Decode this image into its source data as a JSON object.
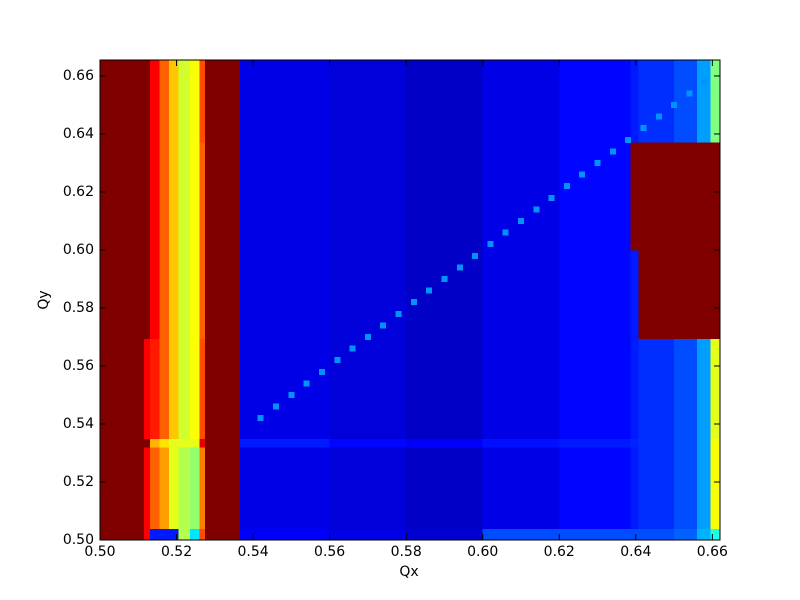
{
  "chart_data": {
    "type": "heatmap",
    "colormap": "jet",
    "x_label": "Qx",
    "y_label": "Qy",
    "xlim": [
      0.5,
      0.662
    ],
    "ylim": [
      0.5,
      0.6655
    ],
    "xticks": [
      {
        "value": 0.5,
        "label": "0.50"
      },
      {
        "value": 0.52,
        "label": "0.52"
      },
      {
        "value": 0.54,
        "label": "0.54"
      },
      {
        "value": 0.56,
        "label": "0.56"
      },
      {
        "value": 0.58,
        "label": "0.58"
      },
      {
        "value": 0.6,
        "label": "0.60"
      },
      {
        "value": 0.62,
        "label": "0.62"
      },
      {
        "value": 0.64,
        "label": "0.64"
      },
      {
        "value": 0.66,
        "label": "0.66"
      }
    ],
    "yticks": [
      {
        "value": 0.5,
        "label": "0.50"
      },
      {
        "value": 0.52,
        "label": "0.52"
      },
      {
        "value": 0.54,
        "label": "0.54"
      },
      {
        "value": 0.56,
        "label": "0.56"
      },
      {
        "value": 0.58,
        "label": "0.58"
      },
      {
        "value": 0.6,
        "label": "0.60"
      },
      {
        "value": 0.62,
        "label": "0.62"
      },
      {
        "value": 0.64,
        "label": "0.64"
      },
      {
        "value": 0.66,
        "label": "0.66"
      }
    ],
    "x_edges": [
      0.5,
      0.5115,
      0.513,
      0.5155,
      0.518,
      0.5205,
      0.5235,
      0.526,
      0.5275,
      0.5366,
      0.56,
      0.58,
      0.6,
      0.62,
      0.6386,
      0.6407,
      0.65,
      0.656,
      0.6595,
      0.662
    ],
    "y_edges": [
      0.5,
      0.504,
      0.532,
      0.535,
      0.5695,
      0.6,
      0.6372,
      0.6655
    ],
    "z": [
      [
        1,
        0.88,
        0.15,
        0.15,
        0.15,
        0.55,
        0.35,
        0.8,
        1,
        0.12,
        0.1,
        0.08,
        0.2,
        0.2,
        0.2,
        0.2,
        0.22,
        0.3,
        0.4
      ],
      [
        1,
        0.88,
        0.78,
        0.72,
        0.6,
        0.55,
        0.52,
        0.75,
        1,
        0.1,
        0.09,
        0.07,
        0.1,
        0.13,
        0.15,
        0.17,
        0.2,
        0.28,
        0.62
      ],
      [
        1,
        1,
        0.7,
        0.65,
        0.6,
        0.6,
        0.6,
        0.9,
        1,
        0.15,
        0.13,
        0.12,
        0.14,
        0.15,
        0.16,
        0.17,
        0.2,
        0.28,
        0.62
      ],
      [
        1,
        0.88,
        0.85,
        0.78,
        0.68,
        0.58,
        0.62,
        0.8,
        1,
        0.1,
        0.09,
        0.07,
        0.1,
        0.13,
        0.15,
        0.17,
        0.2,
        0.28,
        0.6
      ],
      [
        1,
        1,
        0.88,
        0.78,
        0.68,
        0.58,
        0.62,
        0.78,
        1,
        0.1,
        0.09,
        0.07,
        0.1,
        0.13,
        0.15,
        1,
        1,
        1,
        1
      ],
      [
        1,
        1,
        0.88,
        0.78,
        0.68,
        0.58,
        0.62,
        0.78,
        1,
        0.1,
        0.09,
        0.07,
        0.1,
        0.13,
        1,
        1,
        1,
        1,
        1
      ],
      [
        1,
        1,
        0.88,
        0.78,
        0.68,
        0.58,
        0.62,
        0.8,
        1,
        0.1,
        0.09,
        0.07,
        0.1,
        0.13,
        0.15,
        0.17,
        0.2,
        0.28,
        0.5
      ]
    ],
    "diagonal": {
      "x": [
        0.542,
        0.546,
        0.55,
        0.554,
        0.558,
        0.562,
        0.566,
        0.57,
        0.574,
        0.578,
        0.582,
        0.586,
        0.59,
        0.594,
        0.598,
        0.602,
        0.606,
        0.61,
        0.614,
        0.618,
        0.622,
        0.626,
        0.63,
        0.634,
        0.638,
        0.642,
        0.646,
        0.65,
        0.654,
        0.658
      ],
      "y": [
        0.542,
        0.546,
        0.55,
        0.554,
        0.558,
        0.562,
        0.566,
        0.57,
        0.574,
        0.578,
        0.582,
        0.586,
        0.59,
        0.594,
        0.598,
        0.602,
        0.606,
        0.61,
        0.614,
        0.618,
        0.622,
        0.626,
        0.63,
        0.634,
        0.638,
        0.642,
        0.646,
        0.65,
        0.654,
        0.658
      ],
      "value": 0.27
    }
  }
}
